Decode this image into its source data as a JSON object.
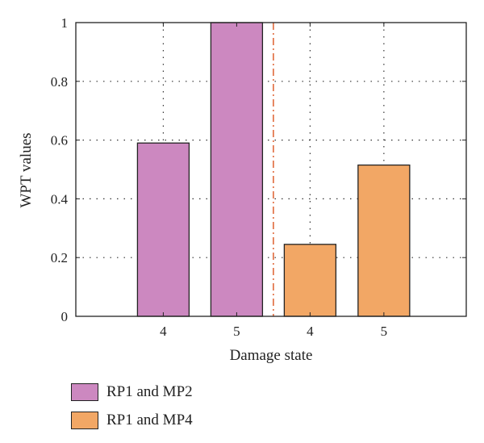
{
  "chart_data": {
    "type": "bar",
    "title": "",
    "xlabel": "Damage state",
    "ylabel": "WPT values",
    "ylim": [
      0,
      1
    ],
    "yticks": [
      0,
      0.2,
      0.4,
      0.6,
      0.8,
      1
    ],
    "ytick_labels": [
      "0",
      "0.2",
      "0.4",
      "0.6",
      "0.8",
      "1"
    ],
    "grid": true,
    "groups": [
      {
        "name": "RP1 and MP2",
        "color": "#cc88c0",
        "categories": [
          "4",
          "5"
        ],
        "values": [
          0.59,
          1.0
        ]
      },
      {
        "name": "RP1 and MP4",
        "color": "#f2a765",
        "categories": [
          "4",
          "5"
        ],
        "values": [
          0.245,
          0.515
        ]
      }
    ],
    "separator_color": "#e06a3c",
    "legend_placement": "bottom-left"
  }
}
